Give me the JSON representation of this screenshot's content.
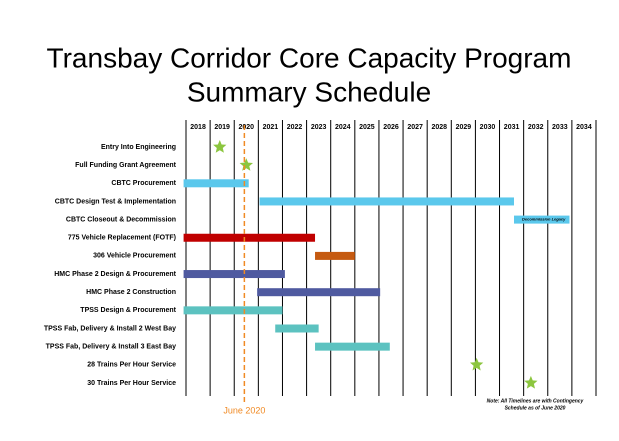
{
  "chart_data": {
    "type": "gantt",
    "title": [
      "Transbay Corridor Core Capacity Program",
      "Summary Schedule"
    ],
    "years": [
      2018,
      2019,
      2020,
      2021,
      2022,
      2023,
      2024,
      2025,
      2026,
      2027,
      2028,
      2029,
      2030,
      2031,
      2032,
      2033,
      2034
    ],
    "xlim": [
      2018,
      2035
    ],
    "tasks": [
      {
        "name": "Entry Into Engineering",
        "date": 2019.4,
        "color": "#8cc63f"
      },
      {
        "name": "Full Funding Grant Agreement",
        "date": 2020.5,
        "color": "#8cc63f"
      },
      {
        "name": "CBTC Procurement",
        "start": 2017.9,
        "end": 2020.6,
        "color": "#5bc8ec"
      },
      {
        "name": "CBTC Design Test & Implementation",
        "start": 2021.05,
        "end": 2031.6,
        "color": "#5bc8ec"
      },
      {
        "name": "CBTC Closeout & Decommission",
        "start": 2031.6,
        "end": 2033.9,
        "color": "#5bc8ec",
        "label": "Decommission Legacy"
      },
      {
        "name": "775 Vehicle Replacement (FOTF)",
        "start": 2017.9,
        "end": 2023.35,
        "color": "#c00000"
      },
      {
        "name": "306 Vehicle Procurement",
        "start": 2023.35,
        "end": 2025.0,
        "color": "#c55a11"
      },
      {
        "name": "HMC Phase 2 Design & Procurement",
        "start": 2017.9,
        "end": 2022.1,
        "color": "#4f5aa0"
      },
      {
        "name": "HMC Phase 2 Construction",
        "start": 2020.95,
        "end": 2026.05,
        "color": "#4f5aa0"
      },
      {
        "name": "TPSS Design & Procurement",
        "start": 2017.9,
        "end": 2022.0,
        "color": "#5cc2c0"
      },
      {
        "name": "TPSS Fab, Delivery & Install 2 West Bay",
        "start": 2021.7,
        "end": 2023.5,
        "color": "#5cc2c0"
      },
      {
        "name": "TPSS Fab, Delivery & Install 3 East Bay",
        "start": 2023.35,
        "end": 2026.45,
        "color": "#5cc2c0"
      },
      {
        "name": "28 Trains Per Hour Service",
        "date": 2030.05,
        "color": "#8cc63f"
      },
      {
        "name": "30 Trains Per Hour Service",
        "date": 2032.3,
        "color": "#8cc63f"
      }
    ],
    "marker": {
      "label": "June 2020",
      "value": 2020.42,
      "color": "#f08a24"
    },
    "note": [
      "Note: All Timelines are with Contingency",
      "Schedule as of June 2020"
    ]
  }
}
